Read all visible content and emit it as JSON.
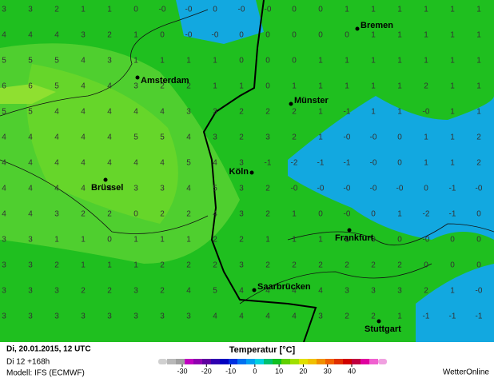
{
  "map": {
    "grid": [
      [
        "3",
        "3",
        "2",
        "1",
        "1",
        "0",
        "-0",
        "-0",
        "0",
        "-0",
        "-0",
        "0",
        "0",
        "1",
        "1",
        "1",
        "1",
        "1",
        "1"
      ],
      [
        "4",
        "4",
        "4",
        "3",
        "2",
        "1",
        "0",
        "-0",
        "-0",
        "0",
        "0",
        "0",
        "0",
        "0",
        "1",
        "1",
        "1",
        "1",
        "1"
      ],
      [
        "5",
        "5",
        "5",
        "4",
        "3",
        "1",
        "1",
        "1",
        "1",
        "0",
        "0",
        "0",
        "1",
        "1",
        "1",
        "1",
        "1",
        "1",
        "1"
      ],
      [
        "6",
        "6",
        "5",
        "4",
        "4",
        "3",
        "2",
        "2",
        "1",
        "1",
        "0",
        "1",
        "1",
        "1",
        "1",
        "1",
        "2",
        "1",
        "1"
      ],
      [
        "5",
        "5",
        "4",
        "4",
        "4",
        "4",
        "4",
        "3",
        "3",
        "2",
        "2",
        "2",
        "1",
        "-1",
        "1",
        "1",
        "-0",
        "1",
        "1"
      ],
      [
        "4",
        "4",
        "4",
        "4",
        "4",
        "5",
        "5",
        "4",
        "3",
        "2",
        "3",
        "2",
        "1",
        "-0",
        "-0",
        "0",
        "1",
        "1",
        "2"
      ],
      [
        "4",
        "4",
        "4",
        "4",
        "4",
        "4",
        "4",
        "5",
        "4",
        "3",
        "-1",
        "-2",
        "-1",
        "-1",
        "-0",
        "0",
        "1",
        "1",
        "2"
      ],
      [
        "4",
        "4",
        "4",
        "4",
        "4",
        "3",
        "3",
        "4",
        "5",
        "3",
        "2",
        "-0",
        "-0",
        "-0",
        "-0",
        "-0",
        "0",
        "-1",
        "-0"
      ],
      [
        "4",
        "4",
        "3",
        "2",
        "2",
        "0",
        "2",
        "2",
        "4",
        "3",
        "2",
        "1",
        "0",
        "-0",
        "0",
        "1",
        "-2",
        "-1",
        "0"
      ],
      [
        "3",
        "3",
        "1",
        "1",
        "0",
        "1",
        "1",
        "1",
        "2",
        "2",
        "1",
        "1",
        "1",
        "1",
        "0",
        "0",
        "-0",
        "0",
        "0"
      ],
      [
        "3",
        "3",
        "2",
        "1",
        "1",
        "1",
        "2",
        "2",
        "2",
        "3",
        "2",
        "2",
        "2",
        "2",
        "2",
        "2",
        "0",
        "0",
        "0"
      ],
      [
        "3",
        "3",
        "3",
        "2",
        "2",
        "3",
        "2",
        "4",
        "5",
        "4",
        "4",
        "4",
        "4",
        "3",
        "3",
        "3",
        "2",
        "1",
        "-0"
      ],
      [
        "3",
        "3",
        "3",
        "3",
        "3",
        "3",
        "3",
        "3",
        "4",
        "4",
        "4",
        "4",
        "3",
        "2",
        "2",
        "1",
        "-1",
        "-1",
        "-1"
      ]
    ],
    "cities": [
      "Bremen",
      "Amsterdam",
      "Münster",
      "Köln",
      "Brüssel",
      "Frankfurt",
      "Saarbrücken",
      "Stuttgart"
    ]
  },
  "footer": {
    "date": "Di, 20.01.2015, 12 UTC",
    "run": "Di 12 +168h",
    "model": "Modell: IFS (ECMWF)",
    "brand": "WetterOnline"
  },
  "legend": {
    "title": "Temperatur [°C]",
    "ticks": [
      -30,
      -20,
      -10,
      0,
      10,
      20,
      30,
      40
    ],
    "colors": [
      "#d0d0d0",
      "#b8b8b8",
      "#a0a0a0",
      "#c000c0",
      "#9000b0",
      "#6000a0",
      "#3000b0",
      "#0000c0",
      "#0030e0",
      "#0070f0",
      "#00a0f0",
      "#00d0e0",
      "#00c070",
      "#10c020",
      "#60d000",
      "#a0e000",
      "#e0e000",
      "#f0c000",
      "#f09000",
      "#f06000",
      "#e03000",
      "#d00000",
      "#c00040",
      "#e000a0",
      "#f060d0",
      "#f0a0e0"
    ]
  }
}
